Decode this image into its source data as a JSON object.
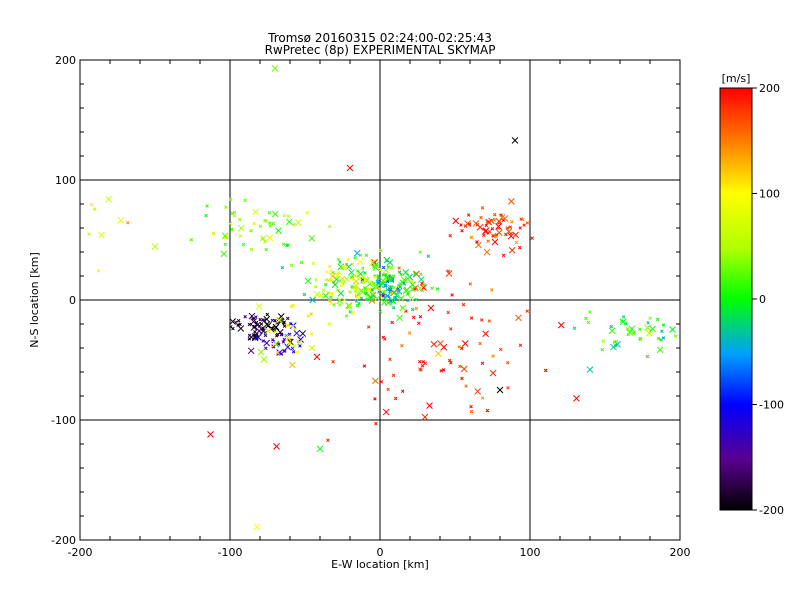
{
  "chart_data": {
    "type": "scatter",
    "title": "Tromsø 20160315 02:24:00-02:25:43",
    "subtitle": "RwPretec (8p) EXPERIMENTAL SKYMAP",
    "xlabel": "E-W location [km]",
    "ylabel": "N-S location [km]",
    "xlim": [
      -200,
      200
    ],
    "ylim": [
      -200,
      200
    ],
    "xticks": [
      "-200",
      "-100",
      "0",
      "100",
      "200"
    ],
    "yticks": [
      "200",
      "100",
      "0",
      "-100",
      "-200"
    ],
    "grid": true,
    "colorbar": {
      "label": "[m/s]",
      "range": [
        -200,
        200
      ],
      "ticks": [
        "200",
        "100",
        "0",
        "-100",
        "-200"
      ]
    },
    "clusters": [
      {
        "name": "red_crosses_ne",
        "center": [
          75,
          62
        ],
        "spread": [
          14,
          10
        ],
        "count": 60,
        "vel": 190
      },
      {
        "name": "red_dots_central",
        "center": [
          40,
          -30
        ],
        "spread": [
          35,
          30
        ],
        "count": 90,
        "vel": 185
      },
      {
        "name": "green_central",
        "center": [
          -5,
          12
        ],
        "spread": [
          18,
          12
        ],
        "count": 140,
        "vel": 20
      },
      {
        "name": "cyan_central",
        "center": [
          2,
          8
        ],
        "spread": [
          10,
          8
        ],
        "count": 50,
        "vel": -35
      },
      {
        "name": "yellow_central",
        "center": [
          -20,
          15
        ],
        "spread": [
          14,
          10
        ],
        "count": 40,
        "vel": 95
      },
      {
        "name": "green_nw_arc",
        "center": [
          -85,
          60
        ],
        "spread": [
          22,
          10
        ],
        "count": 50,
        "vel": 30
      },
      {
        "name": "black_sw",
        "center": [
          -80,
          -22
        ],
        "spread": [
          10,
          6
        ],
        "count": 60,
        "vel": -195
      },
      {
        "name": "blue_sw",
        "center": [
          -68,
          -32
        ],
        "spread": [
          8,
          8
        ],
        "count": 35,
        "vel": -120
      },
      {
        "name": "yellow_sw",
        "center": [
          -60,
          -28
        ],
        "spread": [
          12,
          14
        ],
        "count": 25,
        "vel": 90
      },
      {
        "name": "green_east",
        "center": [
          175,
          -28
        ],
        "spread": [
          22,
          8
        ],
        "count": 45,
        "vel": 5
      },
      {
        "name": "yellow_far_nw",
        "center": [
          -180,
          60
        ],
        "spread": [
          8,
          18
        ],
        "count": 8,
        "vel": 80
      }
    ],
    "outliers": [
      {
        "x": -113,
        "y": -112,
        "vel": 200
      },
      {
        "x": -69,
        "y": -122,
        "vel": 200
      },
      {
        "x": -40,
        "y": -124,
        "vel": 0
      },
      {
        "x": -82,
        "y": -189,
        "vel": 100
      },
      {
        "x": -70,
        "y": 193,
        "vel": 30
      },
      {
        "x": 90,
        "y": 133,
        "vel": -200
      },
      {
        "x": -20,
        "y": 110,
        "vel": 200
      },
      {
        "x": 131,
        "y": -82,
        "vel": 200
      },
      {
        "x": 33,
        "y": -88,
        "vel": 200
      },
      {
        "x": 140,
        "y": -58,
        "vel": -30
      },
      {
        "x": 80,
        "y": -75,
        "vel": -200
      }
    ]
  }
}
